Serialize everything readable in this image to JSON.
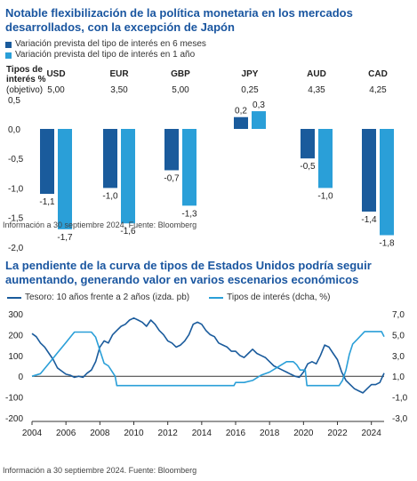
{
  "chart_data": [
    {
      "type": "bar",
      "title": "Notable flexibilización de la política monetaria en los mercados desarrollados, con la excepción de Japón",
      "policy_header": "Tipos de interés % (objetivo)",
      "categories": [
        "USD",
        "EUR",
        "GBP",
        "JPY",
        "AUD",
        "CAD"
      ],
      "policy_rates": [
        "5,00",
        "3,50",
        "5,00",
        "0,25",
        "4,35",
        "4,25"
      ],
      "series": [
        {
          "name": "Variación prevista del tipo de interés en 6 meses",
          "color": "#1a5b9c",
          "values": [
            -1.1,
            -1.0,
            -0.7,
            0.2,
            -0.5,
            -1.4
          ]
        },
        {
          "name": "Variación prevista del tipo de interés en 1 año",
          "color": "#2a9fd8",
          "values": [
            -1.7,
            -1.6,
            -1.3,
            0.3,
            -1.0,
            -1.8
          ]
        }
      ],
      "ylim": [
        -2.0,
        0.5
      ],
      "yticks": [
        0.5,
        0.0,
        -0.5,
        -1.0,
        -1.5,
        -2.0
      ],
      "source": "Información a 30 septiembre 2024. Fuente: Bloomberg"
    },
    {
      "type": "line",
      "title": "La pendiente de la curva de tipos de Estados Unidos podría seguir aumentando, generando valor en varios escenarios económicos",
      "series": [
        {
          "name": "Tesoro: 10 años frente a 2 años (izda. pb)",
          "color": "#1a5b9c",
          "axis": "left",
          "x": [
            2004.0,
            2004.25,
            2004.5,
            2004.75,
            2005.0,
            2005.25,
            2005.5,
            2005.75,
            2006.0,
            2006.25,
            2006.5,
            2006.75,
            2007.0,
            2007.25,
            2007.5,
            2007.75,
            2008.0,
            2008.25,
            2008.5,
            2008.75,
            2009.0,
            2009.25,
            2009.5,
            2009.75,
            2010.0,
            2010.25,
            2010.5,
            2010.75,
            2011.0,
            2011.25,
            2011.5,
            2011.75,
            2012.0,
            2012.25,
            2012.5,
            2012.75,
            2013.0,
            2013.25,
            2013.5,
            2013.75,
            2014.0,
            2014.25,
            2014.5,
            2014.75,
            2015.0,
            2015.25,
            2015.5,
            2015.75,
            2016.0,
            2016.25,
            2016.5,
            2016.75,
            2017.0,
            2017.25,
            2017.5,
            2017.75,
            2018.0,
            2018.25,
            2018.5,
            2018.75,
            2019.0,
            2019.25,
            2019.5,
            2019.75,
            2020.0,
            2020.25,
            2020.5,
            2020.75,
            2021.0,
            2021.25,
            2021.5,
            2021.75,
            2022.0,
            2022.25,
            2022.5,
            2022.75,
            2023.0,
            2023.25,
            2023.5,
            2023.75,
            2024.0,
            2024.25,
            2024.5,
            2024.75
          ],
          "values": [
            205,
            190,
            160,
            140,
            110,
            80,
            40,
            25,
            10,
            5,
            -5,
            0,
            -5,
            15,
            30,
            70,
            140,
            170,
            160,
            200,
            220,
            240,
            250,
            270,
            280,
            270,
            260,
            240,
            270,
            250,
            220,
            200,
            170,
            160,
            140,
            150,
            170,
            200,
            250,
            260,
            250,
            220,
            200,
            190,
            160,
            150,
            140,
            120,
            120,
            100,
            90,
            110,
            130,
            110,
            100,
            90,
            70,
            50,
            40,
            30,
            20,
            10,
            0,
            -5,
            20,
            60,
            70,
            60,
            100,
            150,
            140,
            110,
            80,
            20,
            -20,
            -40,
            -60,
            -70,
            -80,
            -60,
            -40,
            -40,
            -30,
            15
          ]
        },
        {
          "name": "Tipos de interés (dcha, %)",
          "color": "#2a9fd8",
          "axis": "right",
          "x": [
            2004.0,
            2004.5,
            2005.0,
            2005.5,
            2006.0,
            2006.5,
            2007.0,
            2007.5,
            2007.75,
            2008.0,
            2008.25,
            2008.5,
            2008.9,
            2009.0,
            2015.9,
            2016.0,
            2016.5,
            2017.0,
            2017.5,
            2018.0,
            2018.5,
            2019.0,
            2019.4,
            2019.6,
            2019.8,
            2020.1,
            2020.2,
            2022.1,
            2022.3,
            2022.5,
            2022.7,
            2022.9,
            2023.2,
            2023.6,
            2024.6,
            2024.75
          ],
          "values": [
            1.0,
            1.25,
            2.25,
            3.25,
            4.25,
            5.25,
            5.25,
            5.25,
            4.75,
            3.5,
            2.25,
            2.0,
            1.0,
            0.1,
            0.1,
            0.4,
            0.4,
            0.6,
            1.1,
            1.4,
            1.9,
            2.4,
            2.4,
            2.1,
            1.6,
            1.6,
            0.1,
            0.1,
            0.6,
            1.6,
            3.1,
            4.1,
            4.6,
            5.3,
            5.3,
            4.8
          ]
        }
      ],
      "xlim": [
        2004,
        2024.75
      ],
      "xticks": [
        2004,
        2006,
        2008,
        2010,
        2012,
        2014,
        2016,
        2018,
        2020,
        2022,
        2024
      ],
      "ylim_left": [
        -200,
        300
      ],
      "yticks_left": [
        300,
        200,
        100,
        0,
        -100,
        -200
      ],
      "ylim_right": [
        -3.0,
        7.0
      ],
      "yticks_right": [
        "7,0",
        "5,0",
        "3,0",
        "1,0",
        "-1,0",
        "-3,0"
      ],
      "source": "Información a 30 septiembre 2024. Fuente: Bloomberg"
    }
  ]
}
